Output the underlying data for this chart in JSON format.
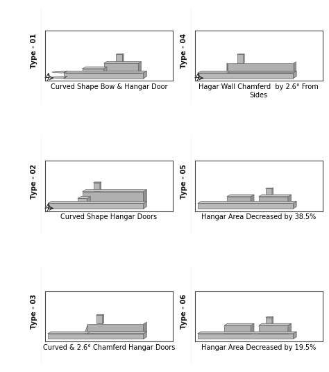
{
  "panel_labels": [
    "Type - 01",
    "Type - 02",
    "Type - 03",
    "Type - 04",
    "Type - 05",
    "Type - 06"
  ],
  "captions": [
    "Curved Shape Bow & Hangar Door",
    "Curved Shape Hangar Doors",
    "Curved & 2.6° Chamferd Hangar Doors",
    "Hagar Wall Chamferd  by 2.6° From\nSides",
    "Hangar Area Decreased by 38.5%",
    "Hangar Area Decreased by 19.5%"
  ],
  "hull_face": "#b8b8b8",
  "hull_top": "#c8c8c8",
  "hull_side": "#a0a0a0",
  "sup_face": "#b0b0b0",
  "sup_top": "#cccccc",
  "sup_side": "#909090",
  "mast_face": "#b8b8b8",
  "mast_top": "#d0d0d0",
  "mast_side": "#989898",
  "edge_color": "#606060",
  "bg_color": "#ffffff",
  "label_fontsize": 7,
  "caption_fontsize": 7
}
